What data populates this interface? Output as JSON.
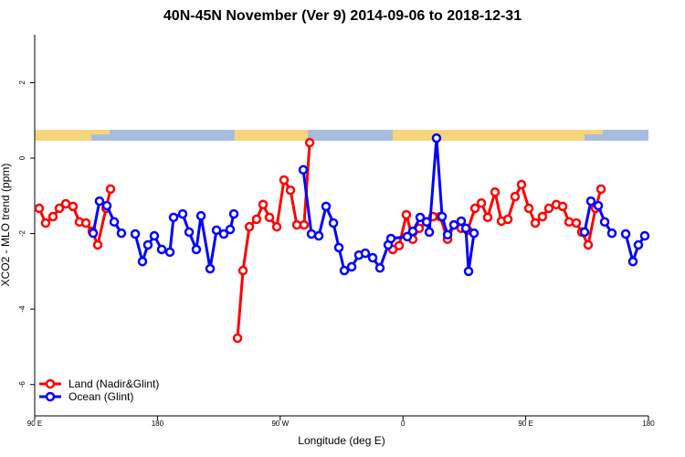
{
  "chart_data": {
    "type": "line",
    "title": "40N-45N November (Ver 9)   2014-09-06 to 2018-12-31",
    "x_label": "Longitude (deg E)",
    "y_label": "XCO2 - MLO trend (ppm)",
    "xlim": [
      90,
      540
    ],
    "xticks": [
      {
        "value": 90,
        "label": "90 E"
      },
      180,
      {
        "value": 270,
        "label": "90 W"
      },
      {
        "value": 360,
        "label": "0"
      },
      {
        "value": 450,
        "label": "90 E"
      },
      {
        "value": 540,
        "label": "180"
      }
    ],
    "ylim": [
      -6.83,
      3.27
    ],
    "yticks": [
      -6,
      -4,
      -2,
      0,
      2
    ],
    "legend": "bottom-left",
    "series": [
      {
        "name": "Land (Nadir&Glint)",
        "color": "#ff0000",
        "x": [
          93.3,
          98.0,
          103.4,
          108.1,
          112.8,
          118.1,
          122.8,
          127.5,
          132.2,
          136.2,
          142.3,
          145.6,
          190,
          238.7,
          242.7,
          247.4,
          252.7,
          257.4,
          262.1,
          267.5,
          272.8,
          277.5,
          282.2,
          287.5,
          291.6,
          320,
          352.5,
          357.2,
          362.5,
          367.2,
          371.9,
          377.3,
          382.0,
          387.3,
          392.7,
          397.4,
          402.7,
          407.4,
          412.8,
          417.5,
          422.1,
          427.5,
          432.2,
          436.9,
          442.2,
          446.9,
          452.3,
          457.0,
          462.3,
          467.0,
          472.4,
          477.1,
          481.8,
          487.1,
          491.1,
          495.8,
          501.2,
          505.2
        ],
        "values": [
          -1.33,
          -1.72,
          -1.55,
          -1.33,
          -1.21,
          -1.28,
          -1.69,
          -1.72,
          -1.94,
          -2.3,
          -1.33,
          -0.82,
          null,
          -4.77,
          -2.98,
          -1.82,
          -1.62,
          -1.23,
          -1.57,
          -1.82,
          -0.58,
          -0.85,
          -1.77,
          -1.77,
          0.41,
          null,
          -2.42,
          -2.32,
          -1.5,
          -2.15,
          -1.86,
          -1.69,
          -1.55,
          -1.55,
          -2.15,
          -1.77,
          -1.86,
          -1.91,
          -1.33,
          -1.19,
          -1.57,
          -0.9,
          -1.67,
          -1.62,
          -1.02,
          -0.7,
          -1.33,
          -1.72,
          -1.55,
          -1.33,
          -1.23,
          -1.28,
          -1.69,
          -1.72,
          -1.96,
          -2.3,
          -1.33,
          -0.82
        ]
      },
      {
        "name": "Ocean (Glint)",
        "color": "#0000ff",
        "x": [
          132.9,
          137.5,
          142.9,
          148.3,
          153.6,
          156,
          163.7,
          169.0,
          173.0,
          177.7,
          183.1,
          189.1,
          191.8,
          198.5,
          203.2,
          208.5,
          211.9,
          218.6,
          223.3,
          228.6,
          233.3,
          236.0,
          260,
          286.9,
          292.9,
          298.3,
          303.6,
          309.0,
          313.0,
          317.0,
          322.4,
          327.7,
          332.4,
          337.8,
          343.1,
          349.2,
          351.2,
          363.2,
          367.2,
          372.6,
          377.3,
          379.3,
          384.6,
          388.7,
          392.7,
          397.4,
          402.7,
          406.1,
          408.1,
          412.1,
          460,
          493.1,
          497.8,
          503.2,
          507.9,
          513.2,
          516,
          523.3,
          528.6,
          532.6,
          537.3
        ],
        "values": [
          -1.99,
          -1.14,
          -1.26,
          -1.69,
          -1.99,
          null,
          -2.01,
          -2.74,
          -2.3,
          -2.06,
          -2.42,
          -2.49,
          -1.57,
          -1.48,
          -1.96,
          -2.42,
          -1.53,
          -2.93,
          -1.91,
          -2.01,
          -1.89,
          -1.48,
          null,
          -0.31,
          -2.01,
          -2.06,
          -1.28,
          -1.72,
          -2.37,
          -2.98,
          -2.88,
          -2.57,
          -2.52,
          -2.64,
          -2.91,
          -2.3,
          -2.13,
          -2.08,
          -1.94,
          -1.57,
          -1.69,
          -1.96,
          0.53,
          -1.55,
          -2.03,
          -1.77,
          -1.67,
          -1.86,
          -3.0,
          -1.99,
          null,
          -1.96,
          -1.14,
          -1.26,
          -1.69,
          -1.99,
          null,
          -2.01,
          -2.74,
          -2.3,
          -2.06
        ]
      }
    ]
  }
}
